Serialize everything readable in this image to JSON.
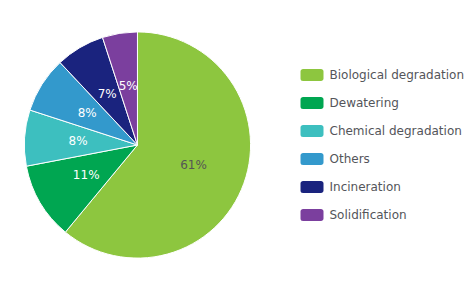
{
  "chart_data": {
    "type": "pie",
    "categories": [
      "Biological degradation",
      "Dewatering",
      "Chemical degradation",
      "Others",
      "Incineration",
      "Solidification"
    ],
    "values": [
      61,
      11,
      8,
      8,
      7,
      5
    ],
    "value_labels": [
      "61%",
      "11%",
      "8%",
      "8%",
      "7%",
      "5%"
    ],
    "colors": [
      "#8dc63f",
      "#00a651",
      "#3dbfbf",
      "#3399cc",
      "#1a237e",
      "#7b3f9e"
    ],
    "data_labels": true,
    "legend": "right"
  }
}
